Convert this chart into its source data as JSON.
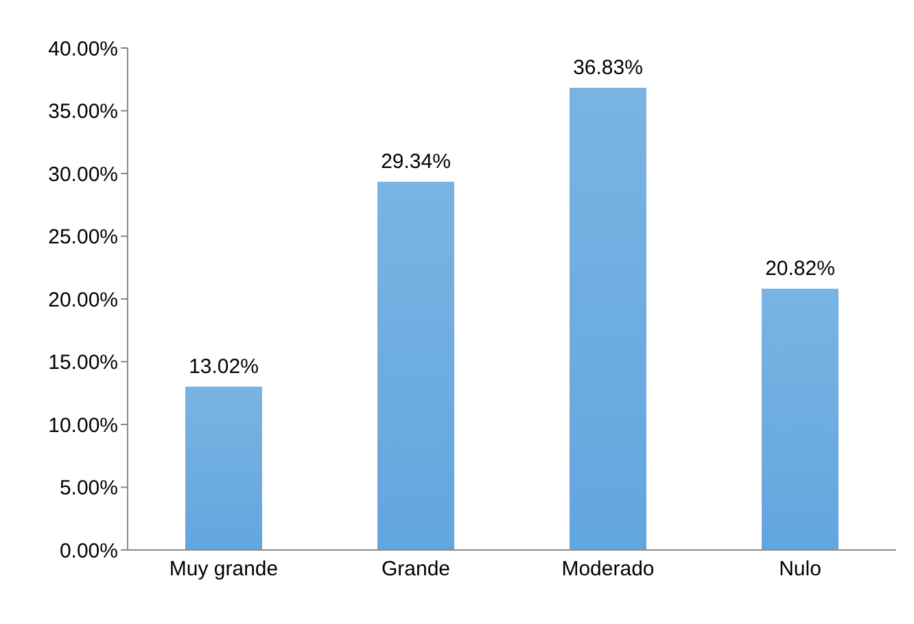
{
  "chart_data": {
    "type": "bar",
    "categories": [
      "Muy grande",
      "Grande",
      "Moderado",
      "Nulo"
    ],
    "values": [
      13.02,
      29.34,
      36.83,
      20.82
    ],
    "value_labels": [
      "13.02%",
      "29.34%",
      "36.83%",
      "20.82%"
    ],
    "color": "#62a6de",
    "ylim": [
      0,
      40
    ],
    "yticks": [
      {
        "value": 0,
        "label": "0.00%"
      },
      {
        "value": 5,
        "label": "5.00%"
      },
      {
        "value": 10,
        "label": "10.00%"
      },
      {
        "value": 15,
        "label": "15.00%"
      },
      {
        "value": 20,
        "label": "20.00%"
      },
      {
        "value": 25,
        "label": "25.00%"
      },
      {
        "value": 30,
        "label": "30.00%"
      },
      {
        "value": 35,
        "label": "35.00%"
      },
      {
        "value": 40,
        "label": "40.00%"
      }
    ],
    "grid": false,
    "legend": false
  }
}
